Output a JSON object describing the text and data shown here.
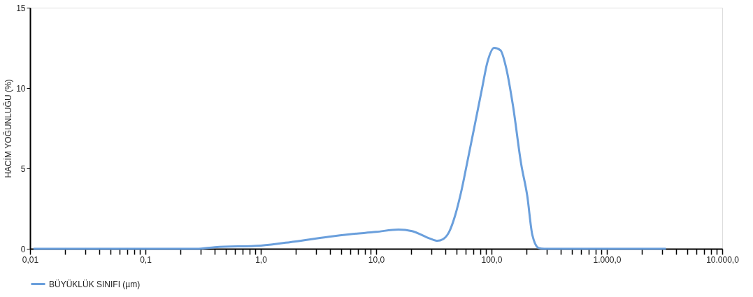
{
  "chart_data": {
    "type": "line",
    "ylabel": "HACİM YOĞUNLUĞU (%)",
    "log": "x",
    "legend": "bottom",
    "grid": false,
    "marker": "none",
    "line_style": "solid",
    "xlim": [
      0.01,
      10000
    ],
    "ylim": [
      0,
      15
    ],
    "yticks": [
      0,
      5,
      10,
      15
    ],
    "xticks": [
      {
        "value": 0.01,
        "label": "0,01"
      },
      {
        "value": 0.02,
        "label": null
      },
      {
        "value": 0.03,
        "label": null
      },
      {
        "value": 0.04,
        "label": null
      },
      {
        "value": 0.05,
        "label": null
      },
      {
        "value": 0.06,
        "label": null
      },
      {
        "value": 0.07,
        "label": null
      },
      {
        "value": 0.08,
        "label": null
      },
      {
        "value": 0.09,
        "label": null
      },
      {
        "value": 0.1,
        "label": "0,1"
      },
      {
        "value": 0.2,
        "label": null
      },
      {
        "value": 0.3,
        "label": null
      },
      {
        "value": 0.4,
        "label": null
      },
      {
        "value": 0.5,
        "label": null
      },
      {
        "value": 0.6,
        "label": null
      },
      {
        "value": 0.7,
        "label": null
      },
      {
        "value": 0.8,
        "label": null
      },
      {
        "value": 0.9,
        "label": null
      },
      {
        "value": 1,
        "label": "1,0"
      },
      {
        "value": 2,
        "label": null
      },
      {
        "value": 3,
        "label": null
      },
      {
        "value": 4,
        "label": null
      },
      {
        "value": 5,
        "label": null
      },
      {
        "value": 6,
        "label": null
      },
      {
        "value": 7,
        "label": null
      },
      {
        "value": 8,
        "label": null
      },
      {
        "value": 9,
        "label": null
      },
      {
        "value": 10,
        "label": "10,0"
      },
      {
        "value": 20,
        "label": null
      },
      {
        "value": 30,
        "label": null
      },
      {
        "value": 40,
        "label": null
      },
      {
        "value": 50,
        "label": null
      },
      {
        "value": 60,
        "label": null
      },
      {
        "value": 70,
        "label": null
      },
      {
        "value": 80,
        "label": null
      },
      {
        "value": 90,
        "label": null
      },
      {
        "value": 100,
        "label": "100,0"
      },
      {
        "value": 200,
        "label": null
      },
      {
        "value": 300,
        "label": null
      },
      {
        "value": 400,
        "label": null
      },
      {
        "value": 500,
        "label": null
      },
      {
        "value": 600,
        "label": null
      },
      {
        "value": 700,
        "label": null
      },
      {
        "value": 800,
        "label": null
      },
      {
        "value": 900,
        "label": null
      },
      {
        "value": 1000,
        "label": "1.000,0"
      },
      {
        "value": 2000,
        "label": null
      },
      {
        "value": 3000,
        "label": null
      },
      {
        "value": 4000,
        "label": null
      },
      {
        "value": 5000,
        "label": null
      },
      {
        "value": 6000,
        "label": null
      },
      {
        "value": 7000,
        "label": null
      },
      {
        "value": 8000,
        "label": null
      },
      {
        "value": 9000,
        "label": null
      },
      {
        "value": 10000,
        "label": "10.000,0"
      }
    ],
    "series": [
      {
        "name": "BÜYÜKLÜK SINIFI (µm)",
        "color": "#6a9fdc",
        "x": [
          0.0107,
          0.279,
          0.4,
          1.0,
          1.95,
          3.9,
          5.9,
          10,
          15.6,
          20.5,
          29,
          34,
          38,
          42.9,
          48.5,
          54.4,
          62.5,
          71.8,
          82.4,
          92.1,
          105.6,
          119.6,
          135,
          153.5,
          181,
          204,
          226,
          256,
          286,
          3250
        ],
        "values": [
          0,
          0,
          0.1,
          0.2,
          0.45,
          0.75,
          0.9,
          1.05,
          1.2,
          1.1,
          0.65,
          0.5,
          0.6,
          1.05,
          2.1,
          3.5,
          5.6,
          7.75,
          9.9,
          11.6,
          12.5,
          12.35,
          11.15,
          8.9,
          5.25,
          3.3,
          0.85,
          0.05,
          0,
          0
        ]
      }
    ]
  }
}
